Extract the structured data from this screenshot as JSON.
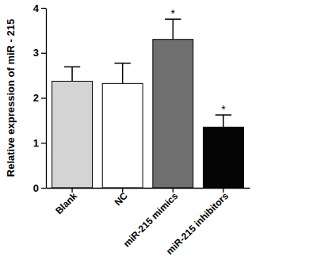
{
  "chart_data": {
    "type": "bar",
    "y_label": "Relative expression of miR - 215",
    "categories": [
      "Blank",
      "NC",
      "miR-215 mimics",
      "miR-215 inhibitors"
    ],
    "values": [
      2.37,
      2.32,
      3.3,
      1.35
    ],
    "errors": [
      0.32,
      0.45,
      0.45,
      0.27
    ],
    "colors": [
      "#d4d4d4",
      "#ffffff",
      "#6f6f6f",
      "#050505"
    ],
    "ylim": [
      0,
      4
    ],
    "yticks": [
      0,
      1,
      2,
      3,
      4
    ],
    "grid": false,
    "annotations": [
      {
        "text": "*",
        "category": "miR-215 mimics"
      },
      {
        "text": "*",
        "category": "miR-215 inhibitors"
      }
    ]
  }
}
